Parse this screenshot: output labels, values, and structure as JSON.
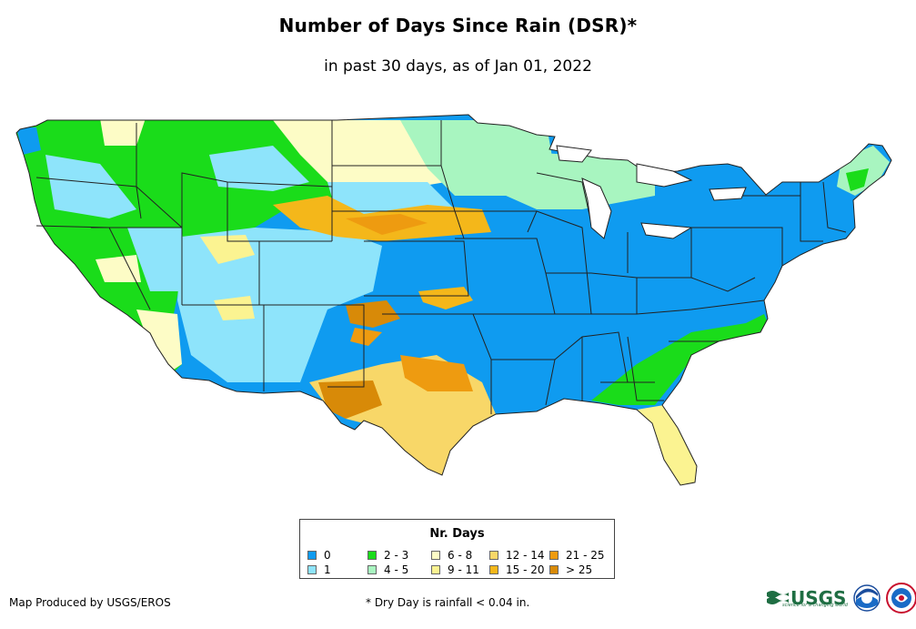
{
  "header": {
    "title": "Number of Days Since Rain (DSR)*",
    "subtitle": "in past 30 days, as of Jan 01, 2022"
  },
  "legend": {
    "title": "Nr. Days",
    "items": [
      {
        "label": "0",
        "color": "#0f9bf0"
      },
      {
        "label": "1",
        "color": "#8ee4fb"
      },
      {
        "label": "2 - 3",
        "color": "#1adc1a"
      },
      {
        "label": "4 - 5",
        "color": "#a8f5c0"
      },
      {
        "label": "6 - 8",
        "color": "#fdfcc6"
      },
      {
        "label": "9 - 11",
        "color": "#fbf391"
      },
      {
        "label": "12 - 14",
        "color": "#f8d768"
      },
      {
        "label": "15 - 20",
        "color": "#f4b71a"
      },
      {
        "label": "21 - 25",
        "color": "#ee9b10"
      },
      {
        "label": "> 25",
        "color": "#d88a08"
      }
    ]
  },
  "footer": {
    "credit": "Map Produced by USGS/EROS",
    "footnote": "* Dry Day is rainfall < 0.04 in.",
    "usgs_logo": "USGS",
    "usgs_tagline": "science for a changing world",
    "noaa_logo": "noaa-logo-icon",
    "nws_logo": "nws-logo-icon"
  }
}
